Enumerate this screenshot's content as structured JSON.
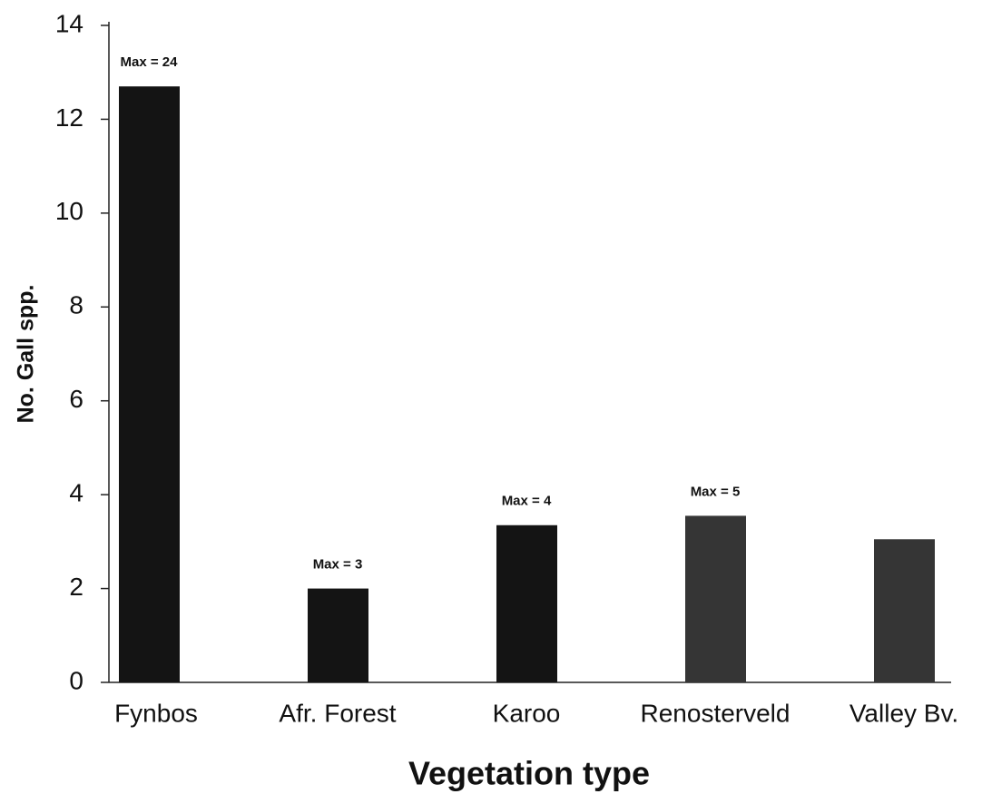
{
  "chart_data": {
    "type": "bar",
    "x_label": "Vegetation type",
    "y_label": "No. Gall spp.",
    "categories": [
      "Fynbos",
      "Afr. Forest",
      "Karoo",
      "Renosterveld",
      "Valley Bv."
    ],
    "values": [
      12.7,
      2.0,
      3.35,
      3.55,
      3.05
    ],
    "colors": [
      "#141414",
      "#141414",
      "#141414",
      "#353535",
      "#353535"
    ],
    "annotations": [
      "Max = 24",
      "Max = 3",
      "Max = 4",
      "Max = 5",
      null
    ],
    "ylim": [
      0,
      14
    ],
    "yticks": [
      0,
      2,
      4,
      6,
      8,
      10,
      12,
      14
    ],
    "grid": false
  }
}
